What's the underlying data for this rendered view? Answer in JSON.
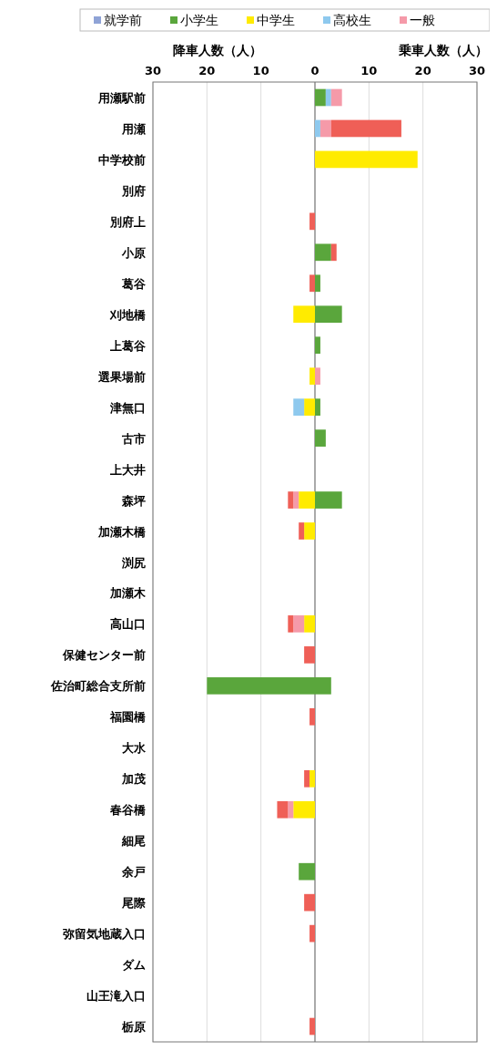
{
  "chart_data": {
    "type": "bar",
    "orientation": "horizontal",
    "stacked": true,
    "categories": [
      "用瀬駅前",
      "用瀬",
      "中学校前",
      "別府",
      "別府上",
      "小原",
      "葛谷",
      "刈地橋",
      "上葛谷",
      "選果場前",
      "津無口",
      "古市",
      "上大井",
      "森坪",
      "加瀬木橋",
      "渕尻",
      "加瀬木",
      "高山口",
      "保健センター前",
      "佐治町総合支所前",
      "福園橋",
      "大水",
      "加茂",
      "春谷橋",
      "細尾",
      "余戸",
      "尾際",
      "弥留気地蔵入口",
      "ダム",
      "山王滝入口",
      "栃原"
    ],
    "series": [
      {
        "name": "就学前",
        "color": "#8fa3d6",
        "values": [
          0,
          0,
          0,
          0,
          0,
          0,
          0,
          0,
          0,
          0,
          0,
          0,
          0,
          0,
          0,
          0,
          0,
          0,
          0,
          0,
          0,
          0,
          0,
          0,
          0,
          0,
          0,
          0,
          0,
          0,
          0
        ]
      },
      {
        "name": "小学生",
        "color": "#5aa63c",
        "values": [
          2,
          0,
          0,
          0,
          0,
          3,
          1,
          5,
          1,
          0,
          1,
          2,
          0,
          5,
          0,
          0,
          0,
          0,
          0,
          3,
          0,
          0,
          0,
          0,
          0,
          0,
          0,
          0,
          0,
          0,
          0
        ]
      },
      {
        "name": "中学生",
        "color": "#ffeb00",
        "values": [
          0,
          0,
          19,
          0,
          0,
          0,
          0,
          0,
          0,
          0,
          0,
          0,
          0,
          0,
          0,
          0,
          0,
          0,
          0,
          0,
          0,
          0,
          0,
          0,
          0,
          0,
          0,
          0,
          0,
          0,
          0
        ]
      },
      {
        "name": "高校生",
        "color": "#8ec9ee",
        "values": [
          1,
          1,
          0,
          0,
          0,
          0,
          0,
          0,
          0,
          0,
          0,
          0,
          0,
          0,
          0,
          0,
          0,
          0,
          0,
          0,
          0,
          0,
          0,
          0,
          0,
          0,
          0,
          0,
          0,
          0,
          0
        ]
      },
      {
        "name": "一般",
        "color": "#f59aa9",
        "values": [
          2,
          2,
          0,
          0,
          0,
          0,
          0,
          0,
          0,
          1,
          0,
          0,
          0,
          0,
          0,
          0,
          0,
          0,
          0,
          0,
          0,
          0,
          0,
          0,
          0,
          0,
          0,
          0,
          0,
          0,
          0
        ]
      },
      {
        "color": "#ef5f57",
        "values": [
          0,
          13,
          0,
          0,
          0,
          1,
          0,
          0,
          0,
          0,
          0,
          0,
          0,
          0,
          0,
          0,
          0,
          0,
          0,
          0,
          0,
          0,
          0,
          0,
          0,
          0,
          0,
          0,
          0,
          0,
          0
        ]
      },
      {
        "color": "#5aa63c",
        "values": [
          0,
          0,
          0,
          0,
          0,
          0,
          0,
          0,
          0,
          0,
          0,
          0,
          0,
          0,
          0,
          0,
          0,
          0,
          0,
          -20,
          0,
          0,
          0,
          0,
          0,
          -3,
          0,
          0,
          0,
          0,
          0
        ]
      },
      {
        "color": "#ffeb00",
        "values": [
          0,
          0,
          0,
          0,
          0,
          0,
          0,
          -4,
          0,
          -1,
          -2,
          0,
          0,
          -3,
          -2,
          0,
          0,
          -2,
          0,
          0,
          0,
          0,
          -1,
          -4,
          0,
          0,
          0,
          0,
          0,
          0,
          0
        ]
      },
      {
        "color": "#8ec9ee",
        "values": [
          0,
          0,
          0,
          0,
          0,
          0,
          0,
          0,
          0,
          0,
          -2,
          0,
          0,
          0,
          0,
          0,
          0,
          0,
          0,
          0,
          0,
          0,
          0,
          0,
          0,
          0,
          0,
          0,
          0,
          0,
          0
        ]
      },
      {
        "color": "#f59aa9",
        "values": [
          0,
          0,
          0,
          0,
          0,
          0,
          0,
          0,
          0,
          0,
          0,
          0,
          0,
          -1,
          0,
          0,
          0,
          -2,
          0,
          0,
          0,
          0,
          0,
          -1,
          0,
          0,
          0,
          0,
          0,
          0,
          0
        ]
      },
      {
        "color": "#ef5f57",
        "values": [
          0,
          0,
          0,
          0,
          -1,
          0,
          -1,
          0,
          0,
          0,
          0,
          0,
          0,
          -1,
          -1,
          0,
          0,
          -1,
          -2,
          0,
          -1,
          0,
          -1,
          -2,
          0,
          0,
          -2,
          -1,
          0,
          0,
          -1
        ]
      }
    ],
    "xlim": [
      -30,
      30
    ],
    "xticks": [
      {
        "value": -30,
        "label": "30"
      },
      {
        "value": -20,
        "label": "20"
      },
      {
        "value": -10,
        "label": "10"
      },
      0,
      10,
      20,
      30
    ],
    "xlabel": "乗車人数（人）",
    "annotations": [
      "降車人数（人）"
    ],
    "grid": "x",
    "legend": "top"
  }
}
